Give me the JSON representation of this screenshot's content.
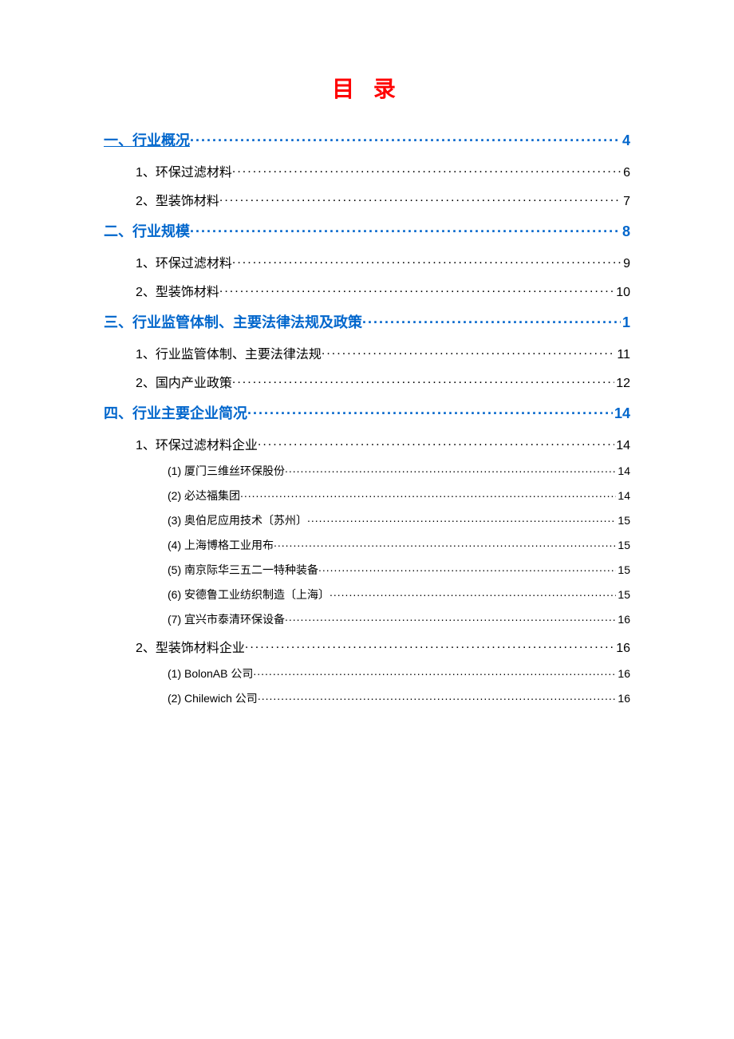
{
  "title": "目 录",
  "title_color": "#ff0000",
  "heading_color": "#0066cc",
  "body_text_color": "#000000",
  "background_color": "#ffffff",
  "toc": [
    {
      "level": 1,
      "label": "一、行业概况",
      "page": "4",
      "underlined": true
    },
    {
      "level": 2,
      "label": "1、环保过滤材料",
      "page": "6"
    },
    {
      "level": 2,
      "label": "2、型装饰材料",
      "page": "7"
    },
    {
      "level": 1,
      "label": "二、行业规模",
      "page": "8",
      "underlined": false
    },
    {
      "level": 2,
      "label": "1、环保过滤材料",
      "page": "9"
    },
    {
      "level": 2,
      "label": "2、型装饰材料",
      "page": "10"
    },
    {
      "level": 1,
      "label": "三、行业监管体制、主要法律法规及政策",
      "page": "1",
      "underlined": false
    },
    {
      "level": 2,
      "label": "1、行业监管体制、主要法律法规",
      "page": "11"
    },
    {
      "level": 2,
      "label": "2、国内产业政策",
      "page": "12"
    },
    {
      "level": 1,
      "label": "四、行业主要企业简况",
      "page": "14",
      "underlined": false
    },
    {
      "level": 2,
      "label": "1、环保过滤材料企业",
      "page": "14"
    },
    {
      "level": 3,
      "label": "(1)  厦门三维丝环保股份",
      "page": "14"
    },
    {
      "level": 3,
      "label": "(2)  必达福集团",
      "page": "14"
    },
    {
      "level": 3,
      "label": "(3)  奥伯尼应用技术〔苏州〕",
      "page": "15"
    },
    {
      "level": 3,
      "label": "(4)  上海博格工业用布",
      "page": "15"
    },
    {
      "level": 3,
      "label": "(5)  南京际华三五二一特种装备",
      "page": "15"
    },
    {
      "level": 3,
      "label": "(6)  安德鲁工业纺织制造〔上海〕",
      "page": "15"
    },
    {
      "level": 3,
      "label": "(7)  宜兴市泰清环保设备",
      "page": "16"
    },
    {
      "level": 2,
      "label": "2、型装饰材料企业",
      "page": "16"
    },
    {
      "level": 3,
      "label": "(1)  BolonAB 公司",
      "page": "16"
    },
    {
      "level": 3,
      "label": "(2)  Chilewich 公司",
      "page": "16"
    }
  ]
}
